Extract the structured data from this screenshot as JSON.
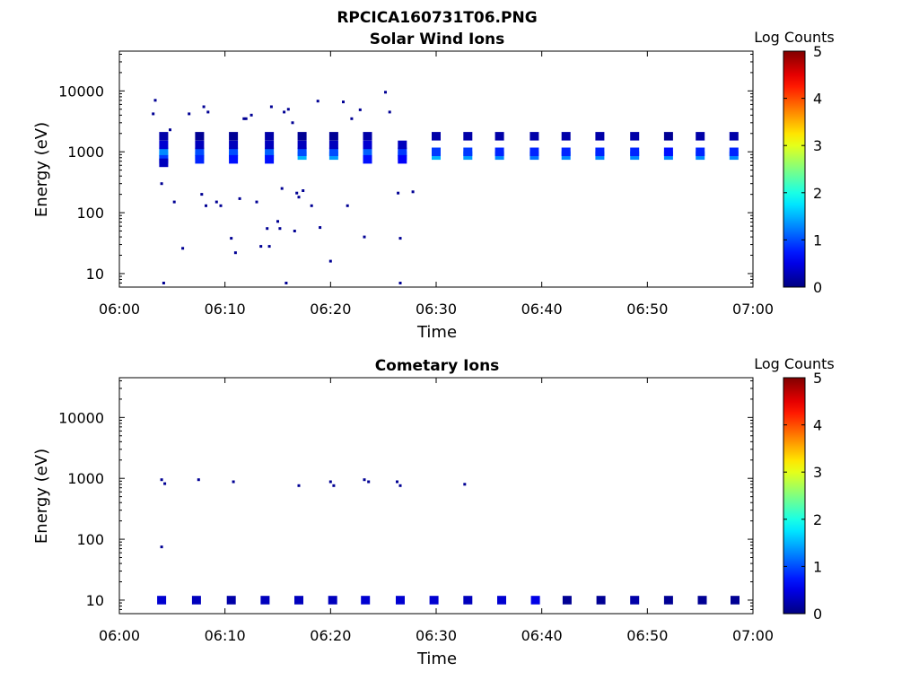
{
  "figure": {
    "title": "RPCICA160731T06.PNG"
  },
  "chart_data": [
    {
      "type": "heatmap",
      "title": "Solar Wind Ions",
      "xlabel": "Time",
      "ylabel": "Energy (eV)",
      "x_ticks": [
        "06:00",
        "06:10",
        "06:20",
        "06:30",
        "06:40",
        "06:50",
        "07:00"
      ],
      "xlim_minutes": [
        0,
        60
      ],
      "y_scale": "log",
      "ylim": [
        6,
        45000
      ],
      "y_ticks": [
        {
          "value": 10,
          "label": "10"
        },
        {
          "value": 100,
          "label": "100"
        },
        {
          "value": 1000,
          "label": "1000"
        },
        {
          "value": 10000,
          "label": "10000"
        }
      ],
      "colorbar": {
        "label": "Log Counts",
        "min": 0,
        "max": 5,
        "ticks": [
          "0",
          "1",
          "2",
          "3",
          "4",
          "5"
        ],
        "colormap": "jet"
      },
      "cells": [
        [
          4.2,
          870,
          2.0
        ],
        [
          4.2,
          1000,
          1.3
        ],
        [
          4.2,
          1300,
          0.4
        ],
        [
          4.2,
          1800,
          0.2
        ],
        [
          4.2,
          750,
          0.9
        ],
        [
          4.2,
          660,
          0.3
        ],
        [
          7.6,
          870,
          1.7
        ],
        [
          7.6,
          1000,
          1.0
        ],
        [
          7.6,
          1300,
          0.3
        ],
        [
          7.6,
          1800,
          0.1
        ],
        [
          7.6,
          750,
          0.8
        ],
        [
          10.8,
          870,
          1.6
        ],
        [
          10.8,
          1000,
          1.0
        ],
        [
          10.8,
          1300,
          0.3
        ],
        [
          10.8,
          1800,
          0.1
        ],
        [
          10.8,
          750,
          0.7
        ],
        [
          14.2,
          870,
          1.6
        ],
        [
          14.2,
          1000,
          1.1
        ],
        [
          14.2,
          1300,
          0.3
        ],
        [
          14.2,
          1800,
          0.2
        ],
        [
          14.2,
          750,
          0.7
        ],
        [
          17.3,
          870,
          1.5
        ],
        [
          17.3,
          1000,
          1.0
        ],
        [
          17.3,
          1300,
          0.3
        ],
        [
          17.3,
          1800,
          0.1
        ],
        [
          20.3,
          870,
          1.4
        ],
        [
          20.3,
          1000,
          1.0
        ],
        [
          20.3,
          1300,
          0.3
        ],
        [
          20.3,
          1800,
          0.1
        ],
        [
          23.5,
          870,
          1.5
        ],
        [
          23.5,
          1000,
          1.1
        ],
        [
          23.5,
          1300,
          0.4
        ],
        [
          23.5,
          1800,
          0.2
        ],
        [
          23.5,
          750,
          0.7
        ],
        [
          26.8,
          870,
          1.4
        ],
        [
          26.8,
          1000,
          0.9
        ],
        [
          26.8,
          1300,
          0.3
        ],
        [
          26.8,
          750,
          0.6
        ],
        [
          30.0,
          870,
          1.5
        ],
        [
          30.0,
          1000,
          0.9
        ],
        [
          30.0,
          1800,
          0.2
        ],
        [
          33.0,
          870,
          1.4
        ],
        [
          33.0,
          1000,
          0.9
        ],
        [
          33.0,
          1800,
          0.2
        ],
        [
          36.0,
          870,
          1.3
        ],
        [
          36.0,
          1000,
          0.8
        ],
        [
          36.0,
          1800,
          0.2
        ],
        [
          39.3,
          870,
          1.2
        ],
        [
          39.3,
          1000,
          0.8
        ],
        [
          39.3,
          1800,
          0.2
        ],
        [
          42.3,
          870,
          1.3
        ],
        [
          42.3,
          1000,
          0.8
        ],
        [
          42.3,
          1800,
          0.2
        ],
        [
          45.5,
          870,
          1.3
        ],
        [
          45.5,
          1000,
          0.8
        ],
        [
          45.5,
          1800,
          0.2
        ],
        [
          48.8,
          870,
          1.3
        ],
        [
          48.8,
          1000,
          0.8
        ],
        [
          48.8,
          1800,
          0.2
        ],
        [
          52.0,
          870,
          1.3
        ],
        [
          52.0,
          1000,
          0.7
        ],
        [
          52.0,
          1800,
          0.1
        ],
        [
          55.0,
          870,
          1.3
        ],
        [
          55.0,
          1000,
          0.8
        ],
        [
          55.0,
          1800,
          0.2
        ],
        [
          58.2,
          870,
          1.3
        ],
        [
          58.2,
          1000,
          0.8
        ],
        [
          58.2,
          1800,
          0.2
        ]
      ],
      "specks": [
        [
          3.2,
          4200
        ],
        [
          3.4,
          7000
        ],
        [
          4.0,
          300
        ],
        [
          4.8,
          2300
        ],
        [
          5.2,
          150
        ],
        [
          6.0,
          26
        ],
        [
          6.6,
          4200
        ],
        [
          7.8,
          200
        ],
        [
          8.2,
          130
        ],
        [
          8.0,
          5500
        ],
        [
          8.4,
          4500
        ],
        [
          9.2,
          150
        ],
        [
          9.6,
          130
        ],
        [
          10.6,
          38
        ],
        [
          11.0,
          22
        ],
        [
          11.4,
          170
        ],
        [
          11.8,
          3500
        ],
        [
          12.0,
          3500
        ],
        [
          12.5,
          4000
        ],
        [
          13.0,
          150
        ],
        [
          13.4,
          28
        ],
        [
          14.0,
          55
        ],
        [
          14.2,
          28
        ],
        [
          14.4,
          5500
        ],
        [
          15.0,
          72
        ],
        [
          15.2,
          55
        ],
        [
          15.4,
          250
        ],
        [
          15.6,
          4500
        ],
        [
          16.0,
          5000
        ],
        [
          16.4,
          3000
        ],
        [
          16.8,
          210
        ],
        [
          17.0,
          180
        ],
        [
          17.4,
          230
        ],
        [
          18.2,
          130
        ],
        [
          18.8,
          6800
        ],
        [
          20.0,
          16
        ],
        [
          21.2,
          6600
        ],
        [
          21.6,
          130
        ],
        [
          22.0,
          3500
        ],
        [
          22.8,
          4900
        ],
        [
          23.2,
          40
        ],
        [
          25.2,
          9500
        ],
        [
          25.6,
          4500
        ],
        [
          26.4,
          210
        ],
        [
          26.6,
          38
        ],
        [
          27.8,
          220
        ],
        [
          19.0,
          57
        ],
        [
          16.6,
          50
        ],
        [
          4.2,
          7
        ],
        [
          15.8,
          7
        ],
        [
          26.6,
          7
        ]
      ]
    },
    {
      "type": "heatmap",
      "title": "Cometary Ions",
      "xlabel": "Time",
      "ylabel": "Energy (eV)",
      "x_ticks": [
        "06:00",
        "06:10",
        "06:20",
        "06:30",
        "06:40",
        "06:50",
        "07:00"
      ],
      "xlim_minutes": [
        0,
        60
      ],
      "y_scale": "log",
      "ylim": [
        6,
        45000
      ],
      "y_ticks": [
        {
          "value": 10,
          "label": "10"
        },
        {
          "value": 100,
          "label": "100"
        },
        {
          "value": 1000,
          "label": "1000"
        },
        {
          "value": 10000,
          "label": "10000"
        }
      ],
      "colorbar": {
        "label": "Log Counts",
        "min": 0,
        "max": 5,
        "ticks": [
          "0",
          "1",
          "2",
          "3",
          "4",
          "5"
        ],
        "colormap": "jet"
      },
      "cells": [
        [
          4.0,
          10,
          0.4
        ],
        [
          7.3,
          10,
          0.3
        ],
        [
          10.6,
          10,
          0.2
        ],
        [
          13.8,
          10,
          0.3
        ],
        [
          17.0,
          10,
          0.3
        ],
        [
          20.2,
          10,
          0.3
        ],
        [
          23.3,
          10,
          0.4
        ],
        [
          26.6,
          10,
          0.4
        ],
        [
          29.8,
          10,
          0.4
        ],
        [
          33.0,
          10,
          0.3
        ],
        [
          36.2,
          10,
          0.4
        ],
        [
          39.4,
          10,
          0.5
        ],
        [
          42.4,
          10,
          0.1
        ],
        [
          45.6,
          10,
          0.1
        ],
        [
          48.8,
          10,
          0.2
        ],
        [
          52.0,
          10,
          0.1
        ],
        [
          55.2,
          10,
          0.1
        ],
        [
          58.3,
          10,
          0.1
        ]
      ],
      "specks": [
        [
          4.0,
          950
        ],
        [
          4.3,
          820
        ],
        [
          7.5,
          950
        ],
        [
          10.8,
          880
        ],
        [
          17.0,
          760
        ],
        [
          20.0,
          880
        ],
        [
          20.3,
          760
        ],
        [
          23.2,
          950
        ],
        [
          23.6,
          880
        ],
        [
          26.3,
          880
        ],
        [
          26.6,
          760
        ],
        [
          32.7,
          800
        ],
        [
          4.0,
          75
        ]
      ]
    }
  ]
}
